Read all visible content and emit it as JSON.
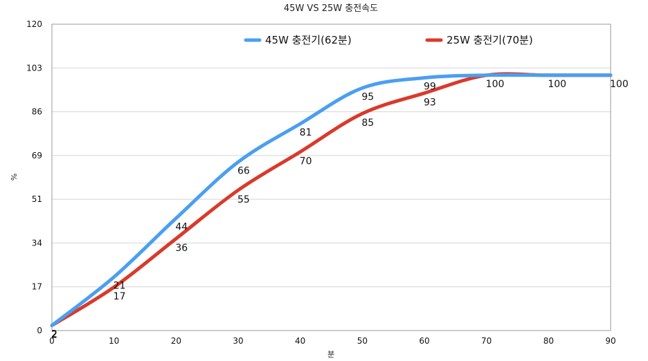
{
  "chart_data": {
    "type": "line",
    "title": "45W VS 25W 충전속도",
    "xlabel": "분",
    "ylabel": "%",
    "x": [
      0,
      10,
      20,
      30,
      40,
      50,
      60,
      70,
      80,
      90
    ],
    "x_ticks": [
      "0",
      "10",
      "20",
      "30",
      "40",
      "50",
      "60",
      "70",
      "80",
      "90"
    ],
    "y_ticks": [
      "0",
      "17",
      "34",
      "51",
      "69",
      "86",
      "103",
      "120"
    ],
    "xlim": [
      0,
      90
    ],
    "ylim": [
      0,
      120
    ],
    "grid": true,
    "legend_position": "top",
    "series": [
      {
        "name": "45W 충전기(62분)",
        "color": "#4A9FF0",
        "values": [
          2,
          21,
          44,
          66,
          81,
          95,
          99,
          100,
          100,
          100
        ],
        "labels": [
          "2",
          "21",
          "44",
          "66",
          "81",
          "95",
          "99",
          "100",
          "100",
          "100"
        ]
      },
      {
        "name": "25W 충전기(70분)",
        "color": "#D93A2B",
        "values": [
          2,
          17,
          36,
          55,
          70,
          85,
          93,
          100,
          100,
          100
        ],
        "labels": [
          "2",
          "17",
          "36",
          "55",
          "70",
          "85",
          "93",
          "",
          "",
          ""
        ]
      }
    ]
  }
}
